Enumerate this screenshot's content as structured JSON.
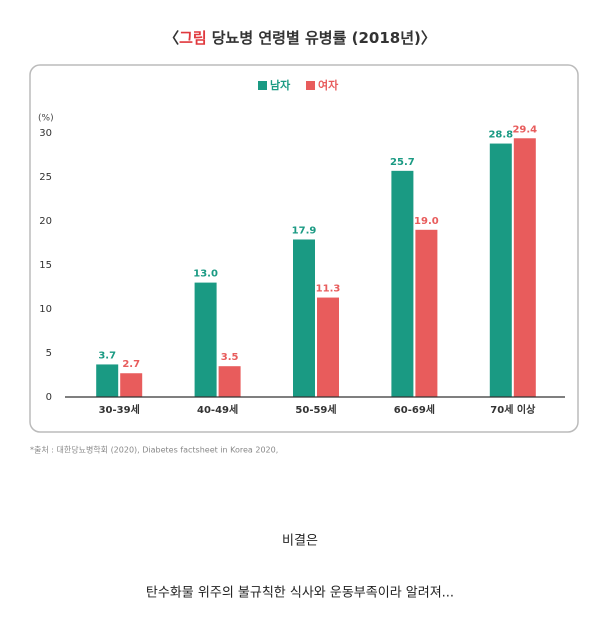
{
  "chart_data": {
    "type": "bar",
    "title_parts": [
      "〈",
      "그림",
      "당뇨병 연령별 유병률 (2018년)〉"
    ],
    "y_label": "(%)",
    "categories": [
      "30-39세",
      "40-49세",
      "50-59세",
      "60-69세",
      "70세 이상"
    ],
    "series": [
      {
        "name": "남자",
        "color": "#1a9a83",
        "values": [
          3.7,
          13.0,
          17.9,
          25.7,
          28.8
        ],
        "value_labels": [
          "3.7",
          "13.0",
          "17.9",
          "25.7",
          "28.8"
        ]
      },
      {
        "name": "여자",
        "color": "#e85c5c",
        "values": [
          2.7,
          3.5,
          11.3,
          19.0,
          29.4
        ],
        "value_labels": [
          "2.7",
          "3.5",
          "11.3",
          "19.0",
          "29.4"
        ]
      }
    ],
    "ylim": [
      0,
      30
    ],
    "yticks": [
      0,
      5,
      10,
      15,
      20,
      25,
      30
    ],
    "grid": false,
    "legend": "top",
    "source": "*출처 : 대한당뇨병학회 (2020), Diabetes factsheet in Korea 2020,"
  },
  "body": {
    "lines": [
      "비결은",
      "탄수화물 위주의 불규칙한 식사와 운동부족이라 알려져..."
    ]
  }
}
